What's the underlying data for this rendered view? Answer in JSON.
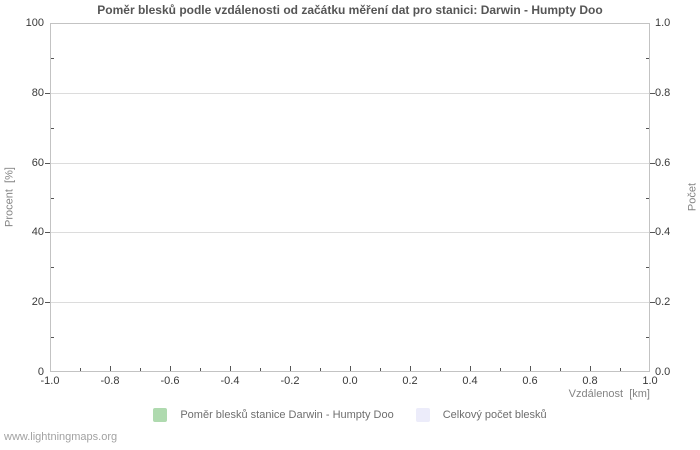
{
  "title": "Poměr blesků podle vzdálenosti od začátku měření dat pro stanici: Darwin - Humpty Doo",
  "watermark": "www.lightningmaps.org",
  "axes": {
    "x_label": "Vzdálenost  [km]",
    "y_left_label": "Procent  [%]",
    "y_right_label": "Počet"
  },
  "legend": {
    "items": [
      {
        "label": "Poměr blesků stanice Darwin - Humpty Doo",
        "color": "#afdaaf"
      },
      {
        "label": "Celkový počet blesků",
        "color": "#ececfa"
      }
    ]
  },
  "chart_data": {
    "type": "bar",
    "title": "Poměr blesků podle vzdálenosti od začátku měření dat pro stanici: Darwin - Humpty Doo",
    "xlabel": "Vzdálenost [km]",
    "ylabel_left": "Procent [%]",
    "ylabel_right": "Počet",
    "xlim": [
      -1.0,
      1.0
    ],
    "ylim_left": [
      0,
      100
    ],
    "ylim_right": [
      0.0,
      1.0
    ],
    "x_major_ticks": [
      -1.0,
      -0.8,
      -0.6,
      -0.4,
      -0.2,
      0.0,
      0.2,
      0.4,
      0.6,
      0.8,
      1.0
    ],
    "x_tick_labels": [
      "-1.0",
      "-0.8",
      "-0.6",
      "-0.4",
      "-0.2",
      "0.0",
      "0.2",
      "0.4",
      "0.6",
      "0.8",
      "1.0"
    ],
    "x_minor_step": 0.1,
    "y_left_major_ticks": [
      0,
      20,
      40,
      60,
      80,
      100
    ],
    "y_left_tick_labels": [
      "0",
      "20",
      "40",
      "60",
      "80",
      "100"
    ],
    "y_left_minor_step": 10,
    "y_right_major_ticks": [
      0.0,
      0.2,
      0.4,
      0.6,
      0.8,
      1.0
    ],
    "y_right_tick_labels": [
      "0.0",
      "0.2",
      "0.4",
      "0.6",
      "0.8",
      "1.0"
    ],
    "grid": "horizontal-major-only",
    "legend_position": "bottom-center",
    "series": [
      {
        "name": "Poměr blesků stanice Darwin - Humpty Doo",
        "type": "bar",
        "color": "#afdaaf",
        "values": []
      },
      {
        "name": "Celkový počet blesků",
        "type": "bar",
        "color": "#ececfa",
        "values": []
      }
    ]
  }
}
